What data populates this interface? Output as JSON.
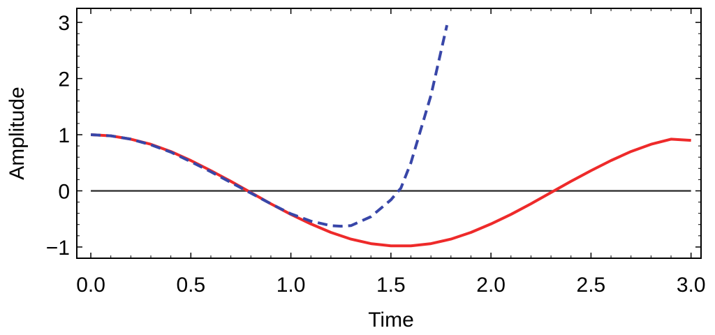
{
  "chart_data": {
    "type": "line",
    "title": "",
    "xlabel": "Time",
    "ylabel": "Amplitude",
    "xlim": [
      -0.07,
      3.05
    ],
    "ylim": [
      -1.2,
      3.25
    ],
    "xticks": [
      0.0,
      0.5,
      1.0,
      1.5,
      2.0,
      2.5,
      3.0
    ],
    "xtick_labels": [
      "0.0",
      "0.5",
      "1.0",
      "1.5",
      "2.0",
      "2.5",
      "3.0"
    ],
    "yticks": [
      -1,
      0,
      1,
      2,
      3
    ],
    "ytick_labels": [
      "−1",
      "0",
      "1",
      "2",
      "3"
    ],
    "grid": false,
    "legend": "none",
    "series": [
      {
        "color": "#ee2a2a",
        "style": "solid",
        "x": [
          0.0,
          0.1,
          0.2,
          0.3,
          0.4,
          0.5,
          0.6,
          0.7,
          0.8,
          0.9,
          1.0,
          1.1,
          1.2,
          1.3,
          1.4,
          1.5,
          1.6,
          1.7,
          1.8,
          1.9,
          2.0,
          2.1,
          2.2,
          2.3,
          2.4,
          2.5,
          2.6,
          2.7,
          2.8,
          2.9,
          3.0
        ],
        "y": [
          1.0,
          0.98,
          0.92,
          0.83,
          0.7,
          0.54,
          0.36,
          0.17,
          -0.03,
          -0.23,
          -0.42,
          -0.59,
          -0.74,
          -0.86,
          -0.94,
          -0.98,
          -0.98,
          -0.94,
          -0.86,
          -0.74,
          -0.59,
          -0.42,
          -0.23,
          -0.03,
          0.17,
          0.36,
          0.54,
          0.7,
          0.83,
          0.92,
          0.9
        ]
      },
      {
        "color": "#3846a8",
        "style": "dashed",
        "x": [
          0.0,
          0.1,
          0.2,
          0.3,
          0.4,
          0.5,
          0.6,
          0.7,
          0.8,
          0.9,
          1.0,
          1.1,
          1.2,
          1.25,
          1.3,
          1.4,
          1.5,
          1.55,
          1.6,
          1.7,
          1.78
        ],
        "y": [
          1.0,
          0.98,
          0.92,
          0.82,
          0.69,
          0.52,
          0.34,
          0.15,
          -0.04,
          -0.23,
          -0.41,
          -0.54,
          -0.62,
          -0.63,
          -0.62,
          -0.46,
          -0.16,
          0.05,
          0.5,
          1.7,
          2.95
        ]
      }
    ],
    "reference_lines": [
      {
        "axis": "y",
        "value": 0,
        "color": "#3a3a3a"
      }
    ]
  }
}
